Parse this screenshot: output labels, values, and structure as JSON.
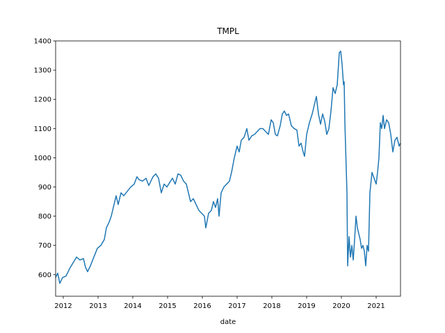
{
  "chart_data": {
    "type": "line",
    "title": "TMPL",
    "x_label": "date",
    "x": [
      2011.78,
      2011.84,
      2011.9,
      2011.98,
      2012.08,
      2012.18,
      2012.28,
      2012.38,
      2012.48,
      2012.58,
      2012.64,
      2012.7,
      2012.78,
      2012.88,
      2012.98,
      2013.08,
      2013.18,
      2013.24,
      2013.32,
      2013.38,
      2013.46,
      2013.52,
      2013.58,
      2013.66,
      2013.74,
      2013.84,
      2013.94,
      2014.04,
      2014.12,
      2014.18,
      2014.28,
      2014.38,
      2014.46,
      2014.52,
      2014.58,
      2014.66,
      2014.74,
      2014.82,
      2014.9,
      2014.98,
      2015.06,
      2015.14,
      2015.22,
      2015.3,
      2015.38,
      2015.46,
      2015.54,
      2015.6,
      2015.66,
      2015.74,
      2015.82,
      2015.9,
      2015.98,
      2016.06,
      2016.1,
      2016.18,
      2016.26,
      2016.32,
      2016.38,
      2016.44,
      2016.48,
      2016.54,
      2016.62,
      2016.7,
      2016.78,
      2016.84,
      2016.92,
      2017.0,
      2017.06,
      2017.12,
      2017.2,
      2017.28,
      2017.34,
      2017.42,
      2017.5,
      2017.58,
      2017.66,
      2017.74,
      2017.82,
      2017.9,
      2017.98,
      2018.04,
      2018.1,
      2018.16,
      2018.24,
      2018.3,
      2018.36,
      2018.42,
      2018.48,
      2018.56,
      2018.64,
      2018.72,
      2018.78,
      2018.84,
      2018.9,
      2018.94,
      2019.0,
      2019.08,
      2019.16,
      2019.22,
      2019.28,
      2019.34,
      2019.4,
      2019.46,
      2019.52,
      2019.58,
      2019.64,
      2019.7,
      2019.76,
      2019.82,
      2019.88,
      2019.94,
      2019.98,
      2020.02,
      2020.06,
      2020.08,
      2020.1,
      2020.16,
      2020.18,
      2020.22,
      2020.26,
      2020.3,
      2020.34,
      2020.38,
      2020.42,
      2020.46,
      2020.5,
      2020.54,
      2020.58,
      2020.62,
      2020.66,
      2020.7,
      2020.74,
      2020.78,
      2020.82,
      2020.88,
      2020.94,
      2021.0,
      2021.04,
      2021.08,
      2021.12,
      2021.16,
      2021.2,
      2021.24,
      2021.3,
      2021.36,
      2021.42,
      2021.48,
      2021.54,
      2021.6,
      2021.66,
      2021.7
    ],
    "values": [
      590,
      605,
      570,
      590,
      595,
      620,
      640,
      660,
      650,
      655,
      625,
      610,
      630,
      660,
      690,
      700,
      720,
      760,
      780,
      800,
      840,
      870,
      840,
      880,
      870,
      885,
      900,
      910,
      935,
      925,
      920,
      930,
      905,
      920,
      935,
      945,
      930,
      880,
      910,
      900,
      915,
      930,
      910,
      945,
      940,
      920,
      910,
      880,
      850,
      860,
      840,
      820,
      810,
      800,
      760,
      810,
      820,
      850,
      830,
      860,
      800,
      880,
      900,
      910,
      920,
      950,
      1000,
      1040,
      1020,
      1060,
      1070,
      1100,
      1060,
      1075,
      1080,
      1090,
      1100,
      1100,
      1090,
      1080,
      1130,
      1120,
      1080,
      1075,
      1110,
      1150,
      1160,
      1145,
      1150,
      1110,
      1100,
      1095,
      1040,
      1050,
      1020,
      1005,
      1080,
      1120,
      1150,
      1180,
      1210,
      1150,
      1115,
      1150,
      1125,
      1080,
      1100,
      1160,
      1240,
      1220,
      1250,
      1360,
      1365,
      1320,
      1250,
      1260,
      1120,
      880,
      630,
      730,
      660,
      700,
      650,
      720,
      800,
      760,
      740,
      720,
      690,
      700,
      680,
      630,
      700,
      680,
      880,
      950,
      930,
      910,
      950,
      1000,
      1120,
      1100,
      1145,
      1100,
      1130,
      1120,
      1080,
      1020,
      1060,
      1070,
      1040,
      1050
    ],
    "color": "#1f77b4",
    "xlim": [
      2011.78,
      2021.7
    ],
    "xticks": [
      2012,
      2013,
      2014,
      2015,
      2016,
      2017,
      2018,
      2019,
      2020,
      2021
    ],
    "ylim": [
      526,
      1400
    ],
    "yticks": [
      600,
      700,
      800,
      900,
      1000,
      1100,
      1200,
      1300,
      1400
    ]
  }
}
